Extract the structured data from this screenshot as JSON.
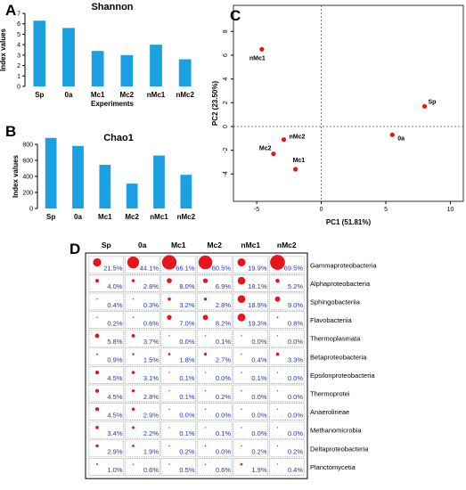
{
  "panels": {
    "A": "A",
    "B": "B",
    "C": "C",
    "D": "D"
  },
  "colors": {
    "bar": "#1ba1e2",
    "point": "#e8141b",
    "pct_text": "#2233bb"
  },
  "chart_data": [
    {
      "panel": "A",
      "type": "bar",
      "title": "Shannon",
      "xlabel": "Experiments",
      "ylabel": "Index values",
      "categories": [
        "Sp",
        "0a",
        "Mc1",
        "Mc2",
        "nMc1",
        "nMc2"
      ],
      "values": [
        6.3,
        5.6,
        3.4,
        3.0,
        4.0,
        2.6
      ],
      "ylim": [
        0,
        7
      ],
      "yticks": [
        0,
        1,
        2,
        3,
        4,
        5,
        6,
        7
      ],
      "grid": false
    },
    {
      "panel": "B",
      "type": "bar",
      "title": "Chao1",
      "ylabel": "Index values",
      "categories": [
        "Sp",
        "0a",
        "Mc1",
        "Mc2",
        "nMc1",
        "nMc2"
      ],
      "values": [
        880,
        780,
        545,
        310,
        660,
        420
      ],
      "ylim": [
        0,
        800
      ],
      "yticks": [
        0,
        200,
        400,
        600,
        800
      ],
      "grid": false
    },
    {
      "panel": "C",
      "type": "scatter",
      "xlabel": "PC1 (51.81%)",
      "ylabel": "PC2 (23.50%)",
      "xlim": [
        -6.8,
        11
      ],
      "ylim": [
        -6.3,
        10.2
      ],
      "xticks": [
        -5,
        0,
        5,
        10
      ],
      "yticks": [
        -4,
        -2,
        0,
        2,
        4,
        6,
        8
      ],
      "points": [
        {
          "label": "nMc1",
          "x": -4.6,
          "y": 6.5
        },
        {
          "label": "Sp",
          "x": 8.0,
          "y": 1.7
        },
        {
          "label": "nMc2",
          "x": -2.9,
          "y": -1.1
        },
        {
          "label": "0a",
          "x": 5.5,
          "y": -0.7
        },
        {
          "label": "Mc2",
          "x": -3.7,
          "y": -2.3
        },
        {
          "label": "Mc1",
          "x": -2.0,
          "y": -3.6
        }
      ],
      "reference_lines": {
        "x": 0,
        "y": 0
      },
      "grid": false
    },
    {
      "panel": "D",
      "type": "heatmap",
      "columns": [
        "Sp",
        "0a",
        "Mc1",
        "Mc2",
        "nMc1",
        "nMc2"
      ],
      "rows": [
        {
          "taxon": "Gammaproteobacteria",
          "values": [
            "21.5%",
            "44.1%",
            "66.1%",
            "60.5%",
            "19.9%",
            "69.5%"
          ]
        },
        {
          "taxon": "Alphaproteobacteria",
          "values": [
            "4.0%",
            "2.8%",
            "8.0%",
            "6.9%",
            "18.1%",
            "5.2%"
          ]
        },
        {
          "taxon": "Sphingobacteriia",
          "values": [
            "0.4%",
            "0.3%",
            "3.2%",
            "2.8%",
            "18.9%",
            "9.0%"
          ]
        },
        {
          "taxon": "Flavobacteriia",
          "values": [
            "0.2%",
            "0.6%",
            "7.0%",
            "8.2%",
            "19.3%",
            "0.8%"
          ]
        },
        {
          "taxon": "Thermoplasmata",
          "values": [
            "5.8%",
            "3.7%",
            "0.0%",
            "0.1%",
            "0.0%",
            "0.0%"
          ]
        },
        {
          "taxon": "Betaproteobacteria",
          "values": [
            "0.9%",
            "1.5%",
            "1.8%",
            "2.7%",
            "0.4%",
            "3.3%"
          ]
        },
        {
          "taxon": "Epsilonproteobacteria",
          "values": [
            "4.5%",
            "3.1%",
            "0.1%",
            "0.0%",
            "0.1%",
            "0.0%"
          ]
        },
        {
          "taxon": "Thermoprotei",
          "values": [
            "4.5%",
            "2.8%",
            "0.1%",
            "0.2%",
            "0.0%",
            "0.0%"
          ]
        },
        {
          "taxon": "Anaerolineae",
          "values": [
            "4.5%",
            "2.9%",
            "0.0%",
            "0.0%",
            "0.0%",
            "0.0%"
          ]
        },
        {
          "taxon": "Methanomicrobia",
          "values": [
            "3.4%",
            "2.2%",
            "0.1%",
            "0.1%",
            "0.0%",
            "0.0%"
          ]
        },
        {
          "taxon": "Deltaproteobacteria",
          "values": [
            "2.9%",
            "1.9%",
            "0.2%",
            "0.0%",
            "0.2%",
            "0.2%"
          ]
        },
        {
          "taxon": "Planctomycetia",
          "values": [
            "1.0%",
            "0.6%",
            "0.5%",
            "0.6%",
            "1.9%",
            "0.4%"
          ]
        }
      ]
    }
  ]
}
